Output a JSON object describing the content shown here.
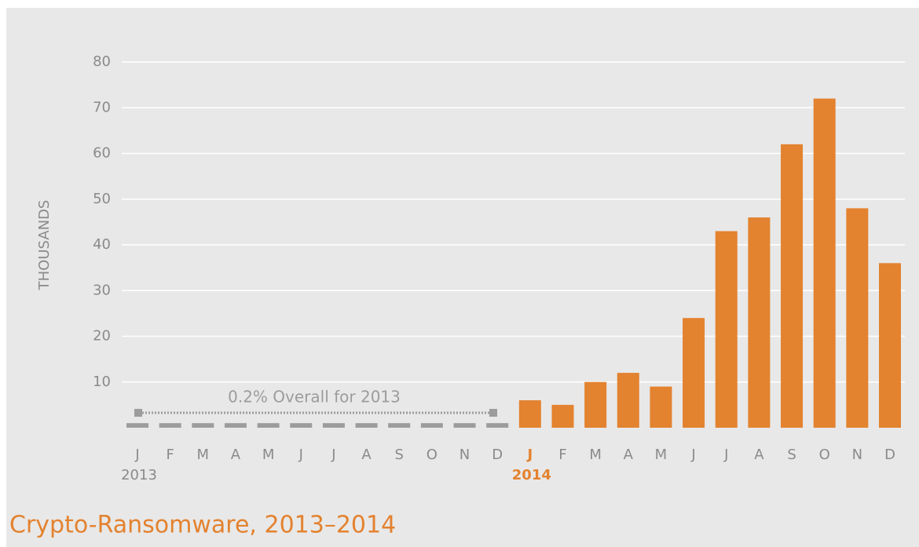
{
  "chart_data": {
    "type": "bar",
    "title": "Crypto-Ransomware, 2013–2014",
    "y_label": "THOUSANDS",
    "annotation": "0.2% Overall for 2013",
    "categories": [
      "J",
      "F",
      "M",
      "A",
      "M",
      "J",
      "J",
      "A",
      "S",
      "O",
      "N",
      "D",
      "J",
      "F",
      "M",
      "A",
      "M",
      "J",
      "J",
      "A",
      "S",
      "O",
      "N",
      "D"
    ],
    "year_labels": [
      "2013",
      "2014"
    ],
    "values": [
      1,
      1,
      1,
      1,
      1,
      1,
      1,
      1,
      1,
      1,
      1,
      1,
      6,
      5,
      10,
      12,
      9,
      24,
      43,
      46,
      62,
      72,
      48,
      36
    ],
    "colors": [
      "#9c9c9c",
      "#9c9c9c",
      "#9c9c9c",
      "#9c9c9c",
      "#9c9c9c",
      "#9c9c9c",
      "#9c9c9c",
      "#9c9c9c",
      "#9c9c9c",
      "#9c9c9c",
      "#9c9c9c",
      "#9c9c9c",
      "#e3822f",
      "#e3822f",
      "#e3822f",
      "#e3822f",
      "#e3822f",
      "#e3822f",
      "#e3822f",
      "#e3822f",
      "#e3822f",
      "#e3822f",
      "#e3822f",
      "#e3822f"
    ],
    "ylim": [
      0,
      80
    ],
    "yticks": [
      10,
      20,
      30,
      40,
      50,
      60,
      70,
      80
    ],
    "grid": true
  }
}
